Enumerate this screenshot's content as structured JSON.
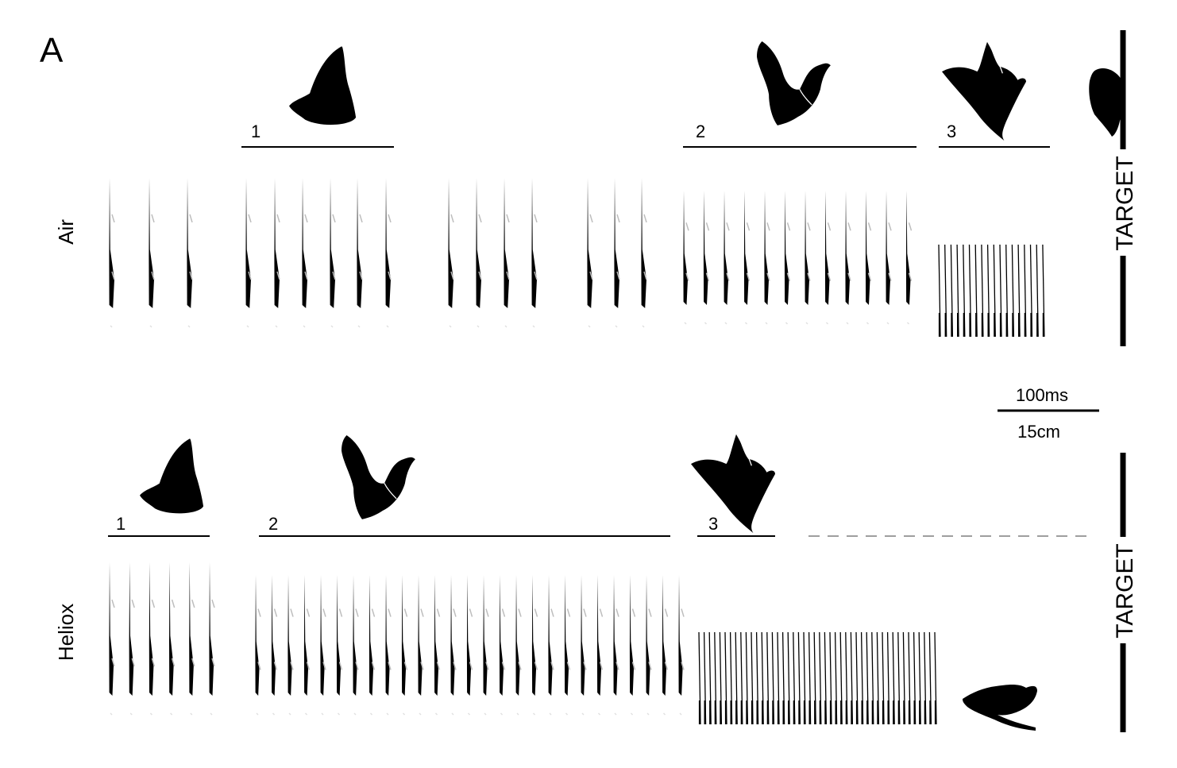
{
  "panel_label": "A",
  "conditions": [
    {
      "name": "Air",
      "target_label": "TARGET",
      "phase_labels": [
        "1",
        "2",
        "3"
      ]
    },
    {
      "name": "Heliox",
      "target_label": "TARGET",
      "phase_labels": [
        "1",
        "2",
        "3"
      ]
    }
  ],
  "scale_bar": {
    "time_label": "100ms",
    "distance_label": "15cm"
  },
  "colors": {
    "ink": "#000000",
    "faint": "#bdbdbd",
    "dash": "#9e9e9e"
  },
  "icons": [
    "bat-silhouette-icon"
  ]
}
